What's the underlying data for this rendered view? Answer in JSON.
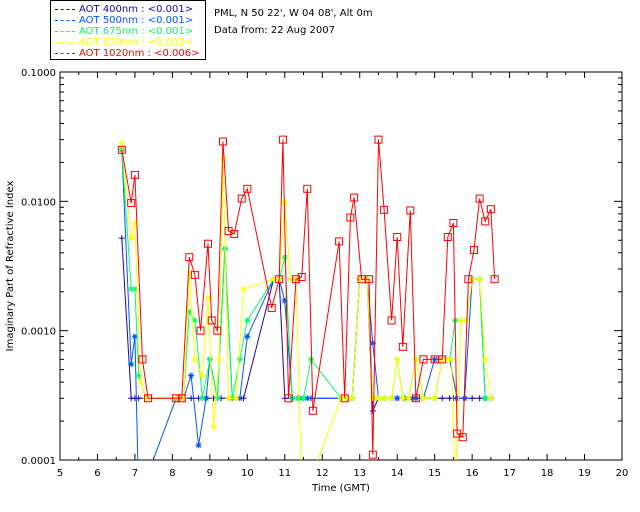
{
  "header": {
    "location": "PML, N 50 22', W 04 08', Alt 0m",
    "date": "Data from: 22 Aug 2007"
  },
  "chart_data": {
    "type": "line",
    "title": "",
    "xlabel": "Time (GMT)",
    "ylabel": "Imaginary Part of Refractive Index",
    "xlim": [
      5,
      20
    ],
    "ylim": [
      0.0001,
      0.1
    ],
    "yscale": "log",
    "grid": false,
    "legend_position": "top-left",
    "x_ticks": [
      "5",
      "6",
      "7",
      "8",
      "9",
      "10",
      "11",
      "12",
      "13",
      "14",
      "15",
      "16",
      "17",
      "18",
      "19",
      "20"
    ],
    "y_ticks": [
      "0.0001",
      "0.0010",
      "0.0100",
      "0.1000"
    ],
    "series": [
      {
        "name": "AOT  400nm : <0.001>",
        "color": "#2200aa",
        "marker": "plus",
        "x": [
          6.65,
          6.9,
          7.0,
          7.1,
          7.3,
          8.1,
          8.3,
          8.5,
          8.7,
          8.9,
          9.1,
          9.3,
          9.5,
          9.7,
          9.9,
          10.7,
          10.85,
          11.0,
          11.2,
          11.35,
          11.5,
          11.7,
          12.5,
          12.65,
          12.8,
          13.0,
          13.2,
          13.35,
          13.5,
          13.65,
          13.85,
          14.0,
          14.2,
          14.5,
          14.7,
          15.0,
          15.2,
          15.4,
          15.5,
          15.6,
          15.8,
          16.0,
          16.2,
          16.35,
          16.5
        ],
        "y": [
          0.0052,
          0.0003,
          0.0003,
          0.0003,
          0.0003,
          0.0003,
          0.0003,
          0.0003,
          0.0003,
          0.0003,
          0.0003,
          0.0003,
          0.0003,
          0.0003,
          0.0003,
          0.0025,
          0.0025,
          0.0003,
          0.0003,
          0.0003,
          0.0003,
          0.0003,
          0.0003,
          0.0003,
          0.0003,
          0.0025,
          0.0025,
          0.00024,
          0.0003,
          0.0003,
          0.0003,
          0.0003,
          0.0003,
          0.0003,
          0.0003,
          0.0003,
          0.0003,
          0.0003,
          0.0003,
          0.0003,
          0.0003,
          0.0003,
          0.0003,
          0.0003,
          0.0003
        ]
      },
      {
        "name": "AOT  500nm : <0.001>",
        "color": "#0055ff",
        "marker": "asterisk",
        "x": [
          6.65,
          6.9,
          7.0,
          7.1,
          8.1,
          8.3,
          8.5,
          8.7,
          8.9,
          9.0,
          9.2,
          9.4,
          9.6,
          9.8,
          10.0,
          10.7,
          10.85,
          11.0,
          11.2,
          11.4,
          11.6,
          12.5,
          12.65,
          12.8,
          13.0,
          13.2,
          13.35,
          13.5,
          13.65,
          13.85,
          14.0,
          14.2,
          14.4,
          14.5,
          14.7,
          15.0,
          15.2,
          15.4,
          15.6,
          15.8,
          16.0,
          16.2,
          16.35,
          16.5
        ],
        "y": [
          0.025,
          0.00055,
          0.0009,
          5e-05,
          0.0003,
          0.0003,
          0.00045,
          0.00013,
          0.0003,
          0.0006,
          0.0003,
          0.0043,
          0.0003,
          0.0003,
          0.0009,
          0.0025,
          0.0025,
          0.0017,
          0.0003,
          0.0003,
          0.0003,
          0.0003,
          0.0003,
          0.0003,
          0.0025,
          0.0025,
          0.0008,
          0.0003,
          0.0003,
          0.0003,
          0.0003,
          0.0003,
          0.0003,
          0.0003,
          0.0003,
          0.0006,
          0.0006,
          0.0006,
          0.0003,
          0.0003,
          0.0025,
          0.0025,
          0.0003,
          0.0003
        ]
      },
      {
        "name": "AOT  675nm : <0.001>",
        "color": "#00ff66",
        "marker": "asterisk",
        "x": [
          6.65,
          6.9,
          7.0,
          7.1,
          7.3,
          8.1,
          8.3,
          8.45,
          8.6,
          8.8,
          9.0,
          9.2,
          9.4,
          9.6,
          9.8,
          10.0,
          10.7,
          10.85,
          11.0,
          11.2,
          11.35,
          11.5,
          11.7,
          12.5,
          12.65,
          12.8,
          13.0,
          13.2,
          13.35,
          13.5,
          13.65,
          13.85,
          14.0,
          14.15,
          14.3,
          14.5,
          14.7,
          15.0,
          15.2,
          15.4,
          15.55,
          15.7,
          15.85,
          16.0,
          16.2,
          16.35,
          16.5
        ],
        "y": [
          0.025,
          0.0021,
          0.0021,
          0.00045,
          0.0003,
          0.0003,
          0.0003,
          0.0014,
          0.0012,
          0.0003,
          0.0006,
          0.0003,
          0.0043,
          0.0003,
          0.0006,
          0.0012,
          0.0025,
          0.0025,
          0.0037,
          0.0003,
          0.0003,
          0.0003,
          0.0006,
          0.0003,
          0.0003,
          0.0003,
          0.0025,
          0.0025,
          0.0003,
          0.0003,
          0.0003,
          0.0003,
          0.0006,
          0.0003,
          0.0003,
          0.0006,
          0.0003,
          0.0003,
          0.0006,
          0.0006,
          0.0012,
          0.0012,
          0.0012,
          0.0025,
          0.0025,
          0.0003,
          0.0003
        ]
      },
      {
        "name": "AOT  870nm : <0.002>",
        "color": "#ffff00",
        "marker": "asterisk",
        "x": [
          6.65,
          6.9,
          7.0,
          7.15,
          7.3,
          8.1,
          8.3,
          8.45,
          8.6,
          8.8,
          8.95,
          9.1,
          9.25,
          9.35,
          9.5,
          9.7,
          9.9,
          10.7,
          10.85,
          11.0,
          11.15,
          11.3,
          11.45,
          11.6,
          12.5,
          12.65,
          12.8,
          13.0,
          13.2,
          13.35,
          13.5,
          13.65,
          13.85,
          14.0,
          14.15,
          14.3,
          14.5,
          14.7,
          15.0,
          15.2,
          15.35,
          15.45,
          15.55,
          15.7,
          15.85,
          16.0,
          16.2,
          16.35,
          16.5
        ],
        "y": [
          0.028,
          0.0052,
          0.0068,
          0.0004,
          0.0003,
          0.0003,
          0.0003,
          0.0028,
          0.0006,
          0.00045,
          0.0018,
          0.00018,
          0.0006,
          0.021,
          0.0003,
          0.0003,
          0.0021,
          0.0025,
          0.0025,
          0.0098,
          0.0025,
          0.0025,
          6e-05,
          6e-05,
          0.0003,
          0.0003,
          0.0003,
          0.0025,
          0.0025,
          0.0003,
          0.0003,
          0.0003,
          0.0003,
          0.0006,
          0.0003,
          0.0003,
          0.0006,
          0.0003,
          0.0003,
          0.0006,
          0.0006,
          0.0006,
          6e-05,
          0.0012,
          0.0012,
          0.0025,
          0.0025,
          0.0006,
          0.0003
        ]
      },
      {
        "name": "AOT 1020nm : <0.006>",
        "color": "#ff0000",
        "marker": "square",
        "x": [
          6.65,
          6.9,
          7.0,
          7.2,
          7.35,
          8.1,
          8.25,
          8.45,
          8.6,
          8.75,
          8.95,
          9.05,
          9.2,
          9.35,
          9.5,
          9.65,
          9.85,
          10.0,
          10.65,
          10.85,
          10.95,
          11.1,
          11.3,
          11.45,
          11.6,
          11.75,
          12.45,
          12.6,
          12.75,
          12.85,
          13.05,
          13.25,
          13.35,
          13.5,
          13.65,
          13.85,
          14.0,
          14.15,
          14.35,
          14.5,
          14.7,
          15.0,
          15.2,
          15.35,
          15.5,
          15.6,
          15.75,
          15.9,
          16.05,
          16.2,
          16.35,
          16.5,
          16.6
        ],
        "y": [
          0.025,
          0.0097,
          0.016,
          0.0006,
          0.0003,
          0.0003,
          0.0003,
          0.0037,
          0.0027,
          0.001,
          0.0047,
          0.0012,
          0.001,
          0.029,
          0.0059,
          0.0056,
          0.0105,
          0.0125,
          0.0015,
          0.0025,
          0.03,
          0.0003,
          0.0025,
          0.0026,
          0.0125,
          0.00024,
          0.0049,
          0.0003,
          0.0075,
          0.0107,
          0.0025,
          0.0025,
          0.00011,
          0.03,
          0.0086,
          0.0012,
          0.0053,
          0.00075,
          0.0085,
          0.0003,
          0.0006,
          0.0006,
          0.0006,
          0.0053,
          0.0068,
          0.00016,
          0.00015,
          0.0025,
          0.0042,
          0.0105,
          0.007,
          0.0087,
          0.0025
        ]
      }
    ]
  }
}
